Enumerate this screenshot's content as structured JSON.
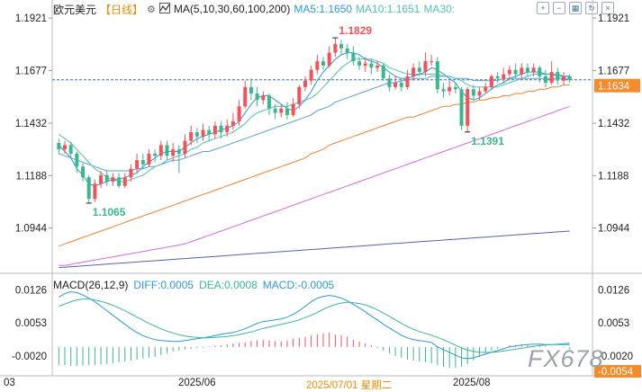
{
  "header": {
    "symbol": "欧元美元",
    "period": "【日线】",
    "gear_icon": "gear-icon",
    "ma_icon": "indicator-icon",
    "ma_label": "MA(5,10,30,60,100,200)",
    "ma5": "MA5:1.1650",
    "ma10": "MA10:1.1651",
    "ma30": "MA30:"
  },
  "tools": [
    "zoom-in-icon",
    "zoom-out-icon",
    "fullscreen-icon",
    "reset-icon",
    "close-icon"
  ],
  "price_axis": {
    "left": [
      "1.1921",
      "1.1677",
      "1.1432",
      "1.1188",
      "1.0944"
    ],
    "right": [
      "1.1921",
      "1.1677",
      "1.1432",
      "1.1188",
      "1.0944"
    ],
    "current": "1.1634",
    "current_color": "#f58b2b"
  },
  "annotations": {
    "high": "1.1829",
    "low_mid": "1.1391",
    "low_left": "1.1065"
  },
  "macd": {
    "label": "MACD(26,12,9)",
    "diff": "DIFF:0.0005",
    "dea": "DEA:0.0008",
    "macd": "MACD:-0.0005",
    "axis_left": [
      "0.0126",
      "0.0053",
      "-0.0020"
    ],
    "axis_right": [
      "0.0126",
      "0.0053",
      "-0.0020",
      "-0.0054"
    ]
  },
  "date_axis": {
    "left_mark": "03",
    "jun": "2025/06",
    "cross": "2025/07/01 星期二",
    "aug": "2025/08"
  },
  "logo": "FX678",
  "colors": {
    "up": "#f0535a",
    "down": "#3bb78c",
    "ma5": "#2b9ad6",
    "ma10": "#52c2b0",
    "ma30": "#5aa0d6",
    "ma60": "#f0812c",
    "ma100": "#d26be0",
    "ma200": "#5a5fb0"
  },
  "chart_data": {
    "type": "candlestick",
    "title": "欧元美元 日线",
    "ylim": [
      1.075,
      1.198
    ],
    "candles": [
      [
        1.134,
        1.131,
        1.136,
        1.129
      ],
      [
        1.131,
        1.133,
        1.135,
        1.129
      ],
      [
        1.133,
        1.129,
        1.1345,
        1.127
      ],
      [
        1.129,
        1.123,
        1.13,
        1.12
      ],
      [
        1.123,
        1.118,
        1.1245,
        1.116
      ],
      [
        1.118,
        1.108,
        1.119,
        1.106
      ],
      [
        1.108,
        1.115,
        1.117,
        1.1065
      ],
      [
        1.115,
        1.119,
        1.121,
        1.113
      ],
      [
        1.119,
        1.116,
        1.121,
        1.114
      ],
      [
        1.116,
        1.118,
        1.12,
        1.114
      ],
      [
        1.118,
        1.114,
        1.12,
        1.113
      ],
      [
        1.114,
        1.118,
        1.12,
        1.113
      ],
      [
        1.118,
        1.122,
        1.124,
        1.116
      ],
      [
        1.122,
        1.126,
        1.129,
        1.12
      ],
      [
        1.126,
        1.124,
        1.129,
        1.122
      ],
      [
        1.124,
        1.129,
        1.131,
        1.123
      ],
      [
        1.129,
        1.128,
        1.131,
        1.125
      ],
      [
        1.128,
        1.133,
        1.135,
        1.126
      ],
      [
        1.133,
        1.128,
        1.135,
        1.126
      ],
      [
        1.128,
        1.131,
        1.134,
        1.125
      ],
      [
        1.131,
        1.129,
        1.133,
        1.12
      ],
      [
        1.129,
        1.135,
        1.138,
        1.127
      ],
      [
        1.135,
        1.139,
        1.142,
        1.133
      ],
      [
        1.139,
        1.137,
        1.141,
        1.134
      ],
      [
        1.137,
        1.14,
        1.143,
        1.135
      ],
      [
        1.14,
        1.138,
        1.142,
        1.135
      ],
      [
        1.138,
        1.142,
        1.144,
        1.136
      ],
      [
        1.142,
        1.139,
        1.144,
        1.136
      ],
      [
        1.139,
        1.142,
        1.145,
        1.137
      ],
      [
        1.142,
        1.144,
        1.148,
        1.14
      ],
      [
        1.144,
        1.151,
        1.154,
        1.142
      ],
      [
        1.151,
        1.16,
        1.163,
        1.15
      ],
      [
        1.16,
        1.157,
        1.164,
        1.154
      ],
      [
        1.157,
        1.154,
        1.16,
        1.151
      ],
      [
        1.154,
        1.156,
        1.158,
        1.152
      ],
      [
        1.156,
        1.15,
        1.157,
        1.147
      ],
      [
        1.15,
        1.148,
        1.152,
        1.145
      ],
      [
        1.148,
        1.15,
        1.152,
        1.146
      ],
      [
        1.15,
        1.147,
        1.153,
        1.145
      ],
      [
        1.147,
        1.152,
        1.155,
        1.146
      ],
      [
        1.152,
        1.16,
        1.161,
        1.15
      ],
      [
        1.16,
        1.163,
        1.165,
        1.158
      ],
      [
        1.163,
        1.168,
        1.17,
        1.161
      ],
      [
        1.168,
        1.172,
        1.175,
        1.166
      ],
      [
        1.172,
        1.17,
        1.174,
        1.168
      ],
      [
        1.17,
        1.176,
        1.179,
        1.169
      ],
      [
        1.176,
        1.18,
        1.1829,
        1.174
      ],
      [
        1.18,
        1.178,
        1.182,
        1.175
      ],
      [
        1.178,
        1.176,
        1.18,
        1.173
      ],
      [
        1.176,
        1.172,
        1.179,
        1.17
      ],
      [
        1.172,
        1.17,
        1.174,
        1.168
      ],
      [
        1.17,
        1.171,
        1.174,
        1.167
      ],
      [
        1.171,
        1.169,
        1.173,
        1.166
      ],
      [
        1.169,
        1.17,
        1.172,
        1.167
      ],
      [
        1.17,
        1.164,
        1.171,
        1.163
      ],
      [
        1.164,
        1.16,
        1.166,
        1.158
      ],
      [
        1.16,
        1.162,
        1.165,
        1.159
      ],
      [
        1.162,
        1.16,
        1.164,
        1.158
      ],
      [
        1.16,
        1.165,
        1.168,
        1.159
      ],
      [
        1.165,
        1.169,
        1.171,
        1.163
      ],
      [
        1.169,
        1.167,
        1.172,
        1.165
      ],
      [
        1.167,
        1.172,
        1.176,
        1.165
      ],
      [
        1.172,
        1.172,
        1.175,
        1.17
      ],
      [
        1.172,
        1.159,
        1.174,
        1.157
      ],
      [
        1.159,
        1.158,
        1.162,
        1.155
      ],
      [
        1.158,
        1.16,
        1.163,
        1.156
      ],
      [
        1.16,
        1.159,
        1.162,
        1.157
      ],
      [
        1.159,
        1.142,
        1.16,
        1.14
      ],
      [
        1.142,
        1.159,
        1.16,
        1.1391
      ],
      [
        1.159,
        1.156,
        1.161,
        1.154
      ],
      [
        1.156,
        1.158,
        1.16,
        1.154
      ],
      [
        1.158,
        1.16,
        1.162,
        1.157
      ],
      [
        1.16,
        1.165,
        1.166,
        1.159
      ],
      [
        1.165,
        1.164,
        1.167,
        1.162
      ],
      [
        1.164,
        1.166,
        1.169,
        1.162
      ],
      [
        1.166,
        1.168,
        1.17,
        1.164
      ],
      [
        1.168,
        1.166,
        1.171,
        1.164
      ],
      [
        1.166,
        1.169,
        1.171,
        1.164
      ],
      [
        1.169,
        1.167,
        1.171,
        1.165
      ],
      [
        1.167,
        1.169,
        1.171,
        1.165
      ],
      [
        1.169,
        1.165,
        1.17,
        1.162
      ],
      [
        1.165,
        1.162,
        1.168,
        1.16
      ],
      [
        1.162,
        1.167,
        1.172,
        1.161
      ],
      [
        1.167,
        1.163,
        1.169,
        1.161
      ],
      [
        1.163,
        1.165,
        1.167,
        1.161
      ],
      [
        1.165,
        1.1634,
        1.166,
        1.162
      ]
    ],
    "ma_lines": {
      "ma5": [
        1.133,
        1.13,
        1.127,
        1.122,
        1.119,
        1.115,
        1.114,
        1.115,
        1.116,
        1.117,
        1.117,
        1.118,
        1.119,
        1.12,
        1.123,
        1.125,
        1.127,
        1.129,
        1.13,
        1.13,
        1.13,
        1.132,
        1.134,
        1.136,
        1.137,
        1.138,
        1.139,
        1.14,
        1.141,
        1.142,
        1.144,
        1.148,
        1.152,
        1.155,
        1.156,
        1.156,
        1.154,
        1.152,
        1.15,
        1.149,
        1.151,
        1.154,
        1.158,
        1.163,
        1.167,
        1.17,
        1.173,
        1.175,
        1.176,
        1.176,
        1.175,
        1.173,
        1.172,
        1.171,
        1.169,
        1.167,
        1.165,
        1.164,
        1.164,
        1.165,
        1.166,
        1.167,
        1.169,
        1.168,
        1.166,
        1.164,
        1.162,
        1.158,
        1.155,
        1.154,
        1.155,
        1.157,
        1.159,
        1.161,
        1.162,
        1.164,
        1.165,
        1.166,
        1.167,
        1.167,
        1.167,
        1.166,
        1.166,
        1.165,
        1.165,
        1.165
      ],
      "ma10": [
        1.138,
        1.136,
        1.134,
        1.131,
        1.128,
        1.125,
        1.122,
        1.12,
        1.118,
        1.117,
        1.116,
        1.116,
        1.117,
        1.118,
        1.119,
        1.121,
        1.123,
        1.124,
        1.126,
        1.127,
        1.128,
        1.129,
        1.131,
        1.132,
        1.134,
        1.135,
        1.136,
        1.137,
        1.138,
        1.139,
        1.141,
        1.143,
        1.146,
        1.148,
        1.149,
        1.15,
        1.151,
        1.151,
        1.151,
        1.152,
        1.153,
        1.154,
        1.155,
        1.157,
        1.16,
        1.163,
        1.166,
        1.169,
        1.171,
        1.173,
        1.173,
        1.173,
        1.173,
        1.172,
        1.171,
        1.169,
        1.168,
        1.167,
        1.166,
        1.166,
        1.166,
        1.166,
        1.166,
        1.166,
        1.165,
        1.165,
        1.164,
        1.163,
        1.161,
        1.16,
        1.16,
        1.16,
        1.16,
        1.16,
        1.161,
        1.162,
        1.163,
        1.164,
        1.165,
        1.166,
        1.166,
        1.166,
        1.166,
        1.166,
        1.165,
        1.1651
      ],
      "ma30": [
        1.129,
        1.128,
        1.127,
        1.126,
        1.125,
        1.124,
        1.123,
        1.122,
        1.121,
        1.121,
        1.121,
        1.121,
        1.121,
        1.122,
        1.122,
        1.123,
        1.123,
        1.124,
        1.125,
        1.126,
        1.126,
        1.127,
        1.128,
        1.129,
        1.13,
        1.13,
        1.131,
        1.132,
        1.133,
        1.134,
        1.135,
        1.136,
        1.137,
        1.138,
        1.139,
        1.14,
        1.141,
        1.142,
        1.143,
        1.144,
        1.145,
        1.146,
        1.147,
        1.149,
        1.15,
        1.151,
        1.153,
        1.154,
        1.155,
        1.156,
        1.157,
        1.158,
        1.159,
        1.16,
        1.161,
        1.162,
        1.162,
        1.163,
        1.163,
        1.164,
        1.164,
        1.164,
        1.165,
        1.165,
        1.165,
        1.165,
        1.164,
        1.164,
        1.164,
        1.163,
        1.163,
        1.163,
        1.163,
        1.163,
        1.164,
        1.164,
        1.164,
        1.164,
        1.164,
        1.164,
        1.164,
        1.164,
        1.164,
        1.164,
        1.164,
        1.164
      ],
      "ma60": [
        1.086,
        1.087,
        1.088,
        1.089,
        1.09,
        1.091,
        1.092,
        1.093,
        1.094,
        1.095,
        1.096,
        1.097,
        1.098,
        1.099,
        1.1,
        1.101,
        1.102,
        1.103,
        1.104,
        1.105,
        1.106,
        1.107,
        1.108,
        1.109,
        1.11,
        1.111,
        1.112,
        1.113,
        1.114,
        1.115,
        1.116,
        1.117,
        1.118,
        1.119,
        1.12,
        1.121,
        1.122,
        1.123,
        1.124,
        1.125,
        1.126,
        1.127,
        1.129,
        1.13,
        1.131,
        1.133,
        1.134,
        1.135,
        1.136,
        1.137,
        1.138,
        1.139,
        1.14,
        1.141,
        1.142,
        1.143,
        1.144,
        1.145,
        1.146,
        1.146,
        1.147,
        1.148,
        1.149,
        1.15,
        1.151,
        1.151,
        1.152,
        1.152,
        1.153,
        1.153,
        1.154,
        1.154,
        1.155,
        1.155,
        1.156,
        1.156,
        1.157,
        1.157,
        1.158,
        1.158,
        1.159,
        1.159,
        1.16,
        1.16,
        1.161,
        1.161
      ],
      "ma100": [
        1.077,
        1.077,
        1.0775,
        1.078,
        1.0785,
        1.079,
        1.0795,
        1.08,
        1.0805,
        1.081,
        1.0815,
        1.082,
        1.0825,
        1.083,
        1.0835,
        1.084,
        1.0845,
        1.085,
        1.0855,
        1.086,
        1.0865,
        1.087,
        1.088,
        1.089,
        1.09,
        1.091,
        1.092,
        1.093,
        1.094,
        1.095,
        1.096,
        1.097,
        1.098,
        1.099,
        1.1,
        1.101,
        1.102,
        1.103,
        1.104,
        1.105,
        1.106,
        1.107,
        1.108,
        1.109,
        1.11,
        1.111,
        1.112,
        1.113,
        1.114,
        1.115,
        1.116,
        1.117,
        1.118,
        1.119,
        1.12,
        1.121,
        1.122,
        1.123,
        1.124,
        1.125,
        1.126,
        1.127,
        1.128,
        1.129,
        1.13,
        1.131,
        1.132,
        1.133,
        1.134,
        1.135,
        1.136,
        1.137,
        1.138,
        1.139,
        1.14,
        1.141,
        1.142,
        1.143,
        1.144,
        1.145,
        1.146,
        1.147,
        1.148,
        1.149,
        1.15,
        1.151
      ],
      "ma200": [
        1.076,
        1.0762,
        1.0764,
        1.0766,
        1.0768,
        1.077,
        1.0772,
        1.0774,
        1.0776,
        1.0778,
        1.078,
        1.0782,
        1.0784,
        1.0786,
        1.0788,
        1.079,
        1.0792,
        1.0794,
        1.0796,
        1.0798,
        1.08,
        1.0802,
        1.0804,
        1.0806,
        1.0808,
        1.081,
        1.0812,
        1.0814,
        1.0816,
        1.0818,
        1.082,
        1.0822,
        1.0824,
        1.0826,
        1.0828,
        1.083,
        1.0832,
        1.0834,
        1.0836,
        1.0838,
        1.084,
        1.0842,
        1.0844,
        1.0846,
        1.0848,
        1.085,
        1.0852,
        1.0854,
        1.0856,
        1.0858,
        1.086,
        1.0862,
        1.0864,
        1.0866,
        1.0868,
        1.087,
        1.0872,
        1.0874,
        1.0876,
        1.0878,
        1.088,
        1.0882,
        1.0884,
        1.0886,
        1.0888,
        1.089,
        1.0892,
        1.0894,
        1.0896,
        1.0898,
        1.09,
        1.0902,
        1.0904,
        1.0906,
        1.0908,
        1.091,
        1.0912,
        1.0914,
        1.0916,
        1.0918,
        1.092,
        1.0922,
        1.0924,
        1.0926,
        1.0928,
        1.093
      ]
    },
    "macd_ylim": [
      -0.006,
      0.0135
    ],
    "macd_diff": [
      0.011,
      0.0118,
      0.0122,
      0.012,
      0.0115,
      0.0108,
      0.01,
      0.009,
      0.008,
      0.007,
      0.006,
      0.005,
      0.004,
      0.0032,
      0.0025,
      0.002,
      0.0016,
      0.0014,
      0.0013,
      0.0012,
      0.0012,
      0.0014,
      0.0016,
      0.0018,
      0.002,
      0.0022,
      0.0025,
      0.0028,
      0.003,
      0.0032,
      0.0036,
      0.004,
      0.0046,
      0.0052,
      0.0056,
      0.0058,
      0.006,
      0.0062,
      0.0066,
      0.0072,
      0.008,
      0.009,
      0.01,
      0.0108,
      0.0112,
      0.0114,
      0.0112,
      0.0108,
      0.0102,
      0.0094,
      0.0086,
      0.0078,
      0.0068,
      0.006,
      0.005,
      0.0042,
      0.0034,
      0.0026,
      0.002,
      0.0016,
      0.0014,
      0.0012,
      0.001,
      0.0,
      -0.0006,
      -0.0012,
      -0.0018,
      -0.0024,
      -0.0026,
      -0.0024,
      -0.002,
      -0.0016,
      -0.0012,
      -0.0008,
      -0.0004,
      0.0,
      0.0002,
      0.0004,
      0.0005,
      0.0006,
      0.0006,
      0.0005,
      0.0005,
      0.0005,
      0.0005,
      0.0005
    ],
    "macd_dea": [
      0.009,
      0.0095,
      0.01,
      0.0104,
      0.0106,
      0.0106,
      0.0104,
      0.0101,
      0.0097,
      0.0092,
      0.0086,
      0.008,
      0.0073,
      0.0066,
      0.0059,
      0.0052,
      0.0046,
      0.004,
      0.0035,
      0.0031,
      0.0027,
      0.0024,
      0.0022,
      0.0021,
      0.002,
      0.002,
      0.0021,
      0.0022,
      0.0023,
      0.0025,
      0.0027,
      0.003,
      0.0033,
      0.0037,
      0.0041,
      0.0044,
      0.0047,
      0.005,
      0.0053,
      0.0056,
      0.006,
      0.0065,
      0.007,
      0.0076,
      0.0083,
      0.0089,
      0.0094,
      0.0097,
      0.0099,
      0.0098,
      0.0096,
      0.0093,
      0.0088,
      0.0082,
      0.0075,
      0.0068,
      0.006,
      0.0052,
      0.0045,
      0.0039,
      0.0034,
      0.003,
      0.0026,
      0.0021,
      0.0016,
      0.001,
      0.0004,
      -0.0002,
      -0.0007,
      -0.001,
      -0.0012,
      -0.0012,
      -0.0012,
      -0.0011,
      -0.0009,
      -0.0007,
      -0.0005,
      -0.0003,
      -0.0001,
      0.0001,
      0.0003,
      0.0004,
      0.0005,
      0.0006,
      0.0007,
      0.0008
    ],
    "macd_hist": [
      -0.004,
      -0.004,
      -0.0042,
      -0.0042,
      -0.0041,
      -0.004,
      -0.004,
      -0.0039,
      -0.0038,
      -0.0036,
      -0.0034,
      -0.0032,
      -0.003,
      -0.0028,
      -0.0026,
      -0.0024,
      -0.0022,
      -0.0018,
      -0.0014,
      -0.001,
      -0.0008,
      -0.0006,
      -0.0004,
      -0.0003,
      -0.0002,
      0.0001,
      0.0003,
      0.0004,
      0.0006,
      0.0007,
      0.0009,
      0.001,
      0.0013,
      0.0015,
      0.0015,
      0.0014,
      0.0013,
      0.0012,
      0.0014,
      0.0018,
      0.002,
      0.0022,
      0.0026,
      0.0028,
      0.003,
      0.0032,
      0.0028,
      0.0026,
      0.0022,
      0.0016,
      0.0012,
      0.0008,
      0.0004,
      -0.0002,
      -0.0008,
      -0.0014,
      -0.002,
      -0.0024,
      -0.0028,
      -0.003,
      -0.0032,
      -0.0034,
      -0.0036,
      -0.004,
      -0.0044,
      -0.0046,
      -0.0046,
      -0.0044,
      -0.0038,
      -0.003,
      -0.0022,
      -0.0014,
      -0.0008,
      -0.0004,
      0.0,
      0.0004,
      0.0004,
      0.0004,
      0.0004,
      0.0003,
      0.0003,
      0.0002,
      0.0001,
      0.0,
      -0.0002,
      -0.0005
    ]
  }
}
